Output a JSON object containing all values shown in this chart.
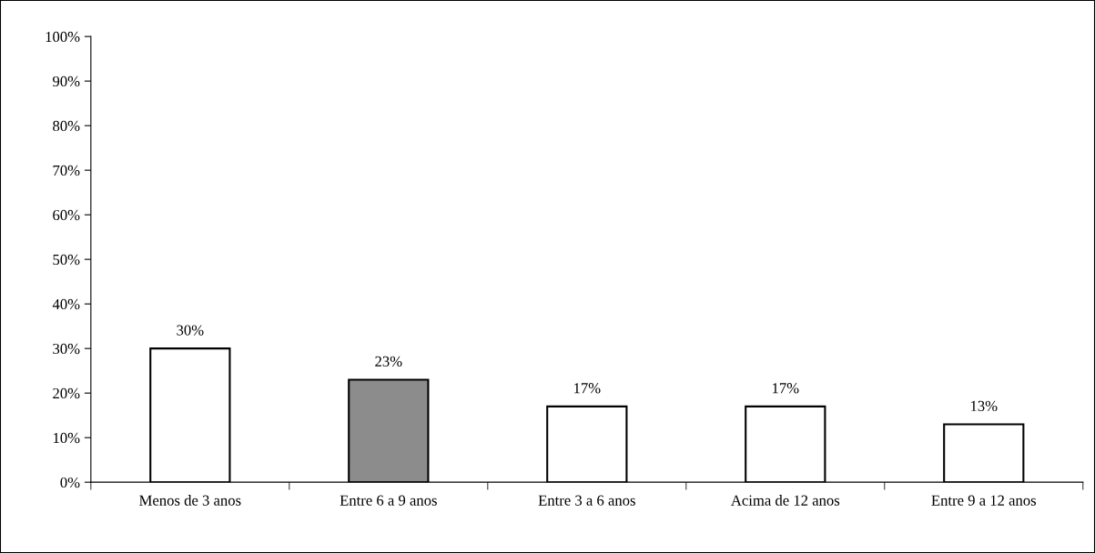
{
  "chart_data": {
    "type": "bar",
    "categories": [
      "Menos de 3 anos",
      "Entre 6 a 9 anos",
      "Entre 3 a 6 anos",
      "Acima de 12 anos",
      "Entre 9 a 12 anos"
    ],
    "values": [
      30,
      23,
      17,
      17,
      13
    ],
    "colors": [
      "#ffffff",
      "#8c8c8c",
      "#ffffff",
      "#ffffff",
      "#ffffff"
    ],
    "value_labels": [
      "30%",
      "23%",
      "17%",
      "17%",
      "13%"
    ],
    "ylim": [
      0,
      100
    ],
    "yticks": [
      {
        "value": 0,
        "label": "0%"
      },
      {
        "value": 10,
        "label": "10%"
      },
      {
        "value": 20,
        "label": "20%"
      },
      {
        "value": 30,
        "label": "30%"
      },
      {
        "value": 40,
        "label": "40%"
      },
      {
        "value": 50,
        "label": "50%"
      },
      {
        "value": 60,
        "label": "60%"
      },
      {
        "value": 70,
        "label": "70%"
      },
      {
        "value": 80,
        "label": "80%"
      },
      {
        "value": 90,
        "label": "90%"
      },
      {
        "value": 100,
        "label": "100%"
      }
    ],
    "grid": false,
    "legend": false
  }
}
